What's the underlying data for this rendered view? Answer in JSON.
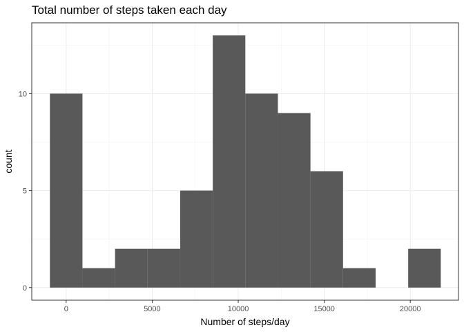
{
  "chart_data": {
    "type": "bar",
    "title": "Total number of steps taken each day",
    "xlabel": "Number of steps/day",
    "ylabel": "count",
    "bin_width": 1893,
    "bins": [
      {
        "x_start": -946,
        "x_end": 947,
        "count": 10
      },
      {
        "x_start": 947,
        "x_end": 2840,
        "count": 1
      },
      {
        "x_start": 2840,
        "x_end": 4733,
        "count": 2
      },
      {
        "x_start": 4733,
        "x_end": 6626,
        "count": 2
      },
      {
        "x_start": 6626,
        "x_end": 8519,
        "count": 5
      },
      {
        "x_start": 8519,
        "x_end": 10412,
        "count": 13
      },
      {
        "x_start": 10412,
        "x_end": 12305,
        "count": 10
      },
      {
        "x_start": 12305,
        "x_end": 14198,
        "count": 9
      },
      {
        "x_start": 14198,
        "x_end": 16091,
        "count": 6
      },
      {
        "x_start": 16091,
        "x_end": 17984,
        "count": 1
      },
      {
        "x_start": 17984,
        "x_end": 19877,
        "count": 0
      },
      {
        "x_start": 19877,
        "x_end": 21770,
        "count": 2
      }
    ],
    "xlim": [
      -2000,
      22800
    ],
    "ylim": [
      -0.65,
      13.65
    ],
    "x_ticks": [
      0,
      5000,
      10000,
      15000,
      20000
    ],
    "x_tick_labels": [
      "0",
      "5000",
      "10000",
      "15000",
      "20000"
    ],
    "y_ticks": [
      0,
      5,
      10
    ],
    "y_tick_labels": [
      "0",
      "5",
      "10"
    ],
    "grid": true,
    "bar_color": "#595959",
    "theme": "bw"
  }
}
